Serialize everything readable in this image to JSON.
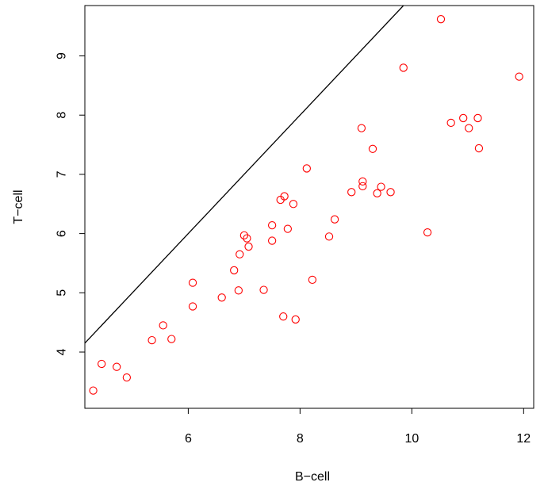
{
  "chart_data": {
    "type": "scatter",
    "title": "",
    "xlabel": "B−cell",
    "ylabel": "T−cell",
    "xlim": [
      4.15,
      12.18
    ],
    "ylim": [
      3.05,
      9.85
    ],
    "xticks": [
      6,
      8,
      10,
      12
    ],
    "yticks": [
      4,
      5,
      6,
      7,
      8,
      9
    ],
    "xtick_labels": [
      "6",
      "8",
      "10",
      "12"
    ],
    "ytick_labels": [
      "4",
      "5",
      "6",
      "7",
      "8",
      "9"
    ],
    "grid": false,
    "point_color": "#ff0000",
    "line_color": "#000000",
    "reference_line": {
      "label": "",
      "intercept": 0,
      "slope": 1
    },
    "series": [
      {
        "x": [
          4.3,
          4.45,
          4.72,
          4.9,
          5.35,
          5.55,
          5.7,
          6.08,
          6.08,
          6.6,
          6.82,
          6.9,
          6.92,
          7.0,
          7.05,
          7.08,
          7.35,
          7.5,
          7.5,
          7.65,
          7.7,
          7.72,
          7.78,
          7.88,
          7.92,
          8.12,
          8.22,
          8.52,
          8.62,
          8.92,
          9.1,
          9.12,
          9.12,
          9.3,
          9.38,
          9.45,
          9.62,
          9.85,
          10.28,
          10.52,
          10.7,
          10.92,
          11.02,
          11.18,
          11.2,
          11.92
        ],
        "y": [
          3.35,
          3.8,
          3.75,
          3.57,
          4.2,
          4.45,
          4.22,
          5.17,
          4.77,
          4.92,
          5.38,
          5.04,
          5.65,
          5.97,
          5.92,
          5.78,
          5.05,
          6.14,
          5.88,
          6.57,
          4.6,
          6.63,
          6.08,
          6.5,
          4.55,
          7.1,
          5.22,
          5.95,
          6.24,
          6.7,
          7.78,
          6.88,
          6.8,
          7.43,
          6.68,
          6.79,
          6.7,
          8.8,
          6.02,
          9.62,
          7.87,
          7.95,
          7.78,
          7.95,
          7.44,
          8.65
        ]
      }
    ]
  }
}
